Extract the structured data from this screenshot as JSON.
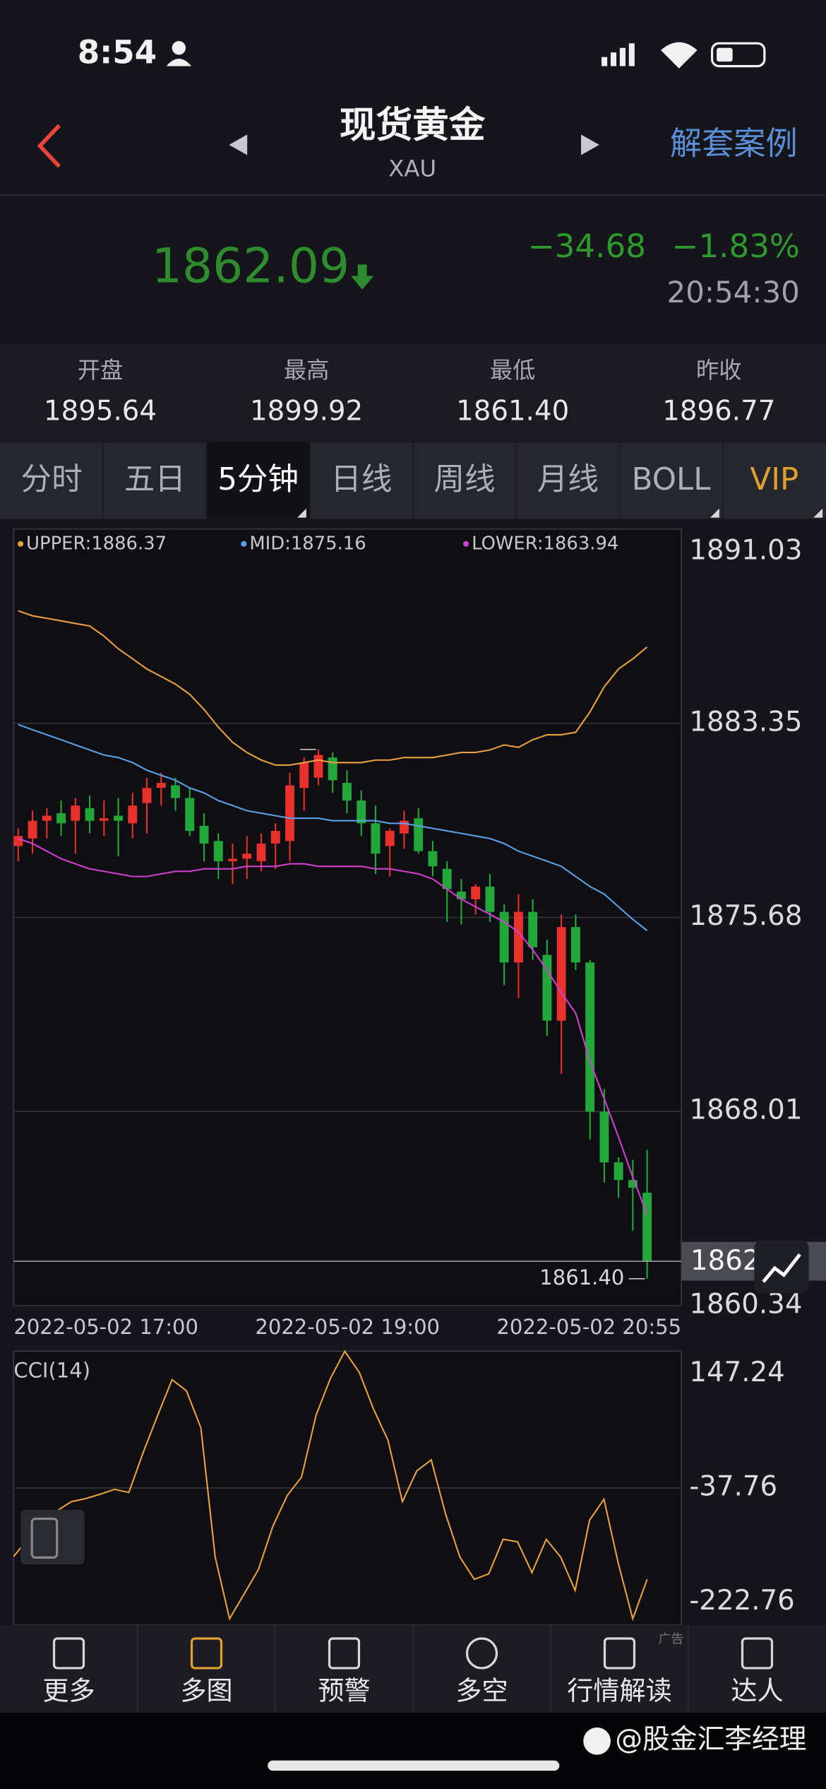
{
  "status_bar": {
    "time": "8:54"
  },
  "header": {
    "title": "现货黄金",
    "subtitle": "XAU",
    "action": "解套案例"
  },
  "quote": {
    "price": "1862.09",
    "change": "−34.68",
    "change_percent": "−1.83%",
    "time": "20:54:30"
  },
  "stats": [
    {
      "label": "开盘",
      "value": "1895.64"
    },
    {
      "label": "最高",
      "value": "1899.92"
    },
    {
      "label": "最低",
      "value": "1861.40"
    },
    {
      "label": "昨收",
      "value": "1896.77"
    }
  ],
  "tabs": [
    "分时",
    "五日",
    "5分钟",
    "日线",
    "周线",
    "月线",
    "BOLL",
    "VIP"
  ],
  "chart_data": [
    {
      "type": "candlestick",
      "up_color": "#e8302c",
      "down_color": "#22a83a",
      "candles": {
        "open": [
          1878.5,
          1878.8,
          1879.5,
          1879.8,
          1879.5,
          1880.0,
          1879.5,
          1879.7,
          1879.4,
          1880.2,
          1880.8,
          1880.9,
          1880.4,
          1879.3,
          1878.7,
          1877.9,
          1878.0,
          1877.9,
          1878.6,
          1878.7,
          1880.8,
          1881.2,
          1882.0,
          1881.0,
          1880.3,
          1879.4,
          1878.5,
          1879.0,
          1879.6,
          1878.3,
          1877.6,
          1876.7,
          1876.4,
          1876.9,
          1875.9,
          1873.9,
          1875.9,
          1874.2,
          1871.6,
          1875.3,
          1873.9,
          1868.0,
          1866.0,
          1865.3,
          1864.8
        ],
        "high": [
          1879.2,
          1879.9,
          1880.0,
          1880.3,
          1880.4,
          1880.5,
          1880.3,
          1880.4,
          1880.6,
          1881.2,
          1881.4,
          1881.2,
          1880.8,
          1879.8,
          1879.0,
          1878.6,
          1878.9,
          1879.0,
          1879.4,
          1881.4,
          1882.0,
          1882.32,
          1882.2,
          1881.5,
          1880.7,
          1880.1,
          1879.2,
          1879.9,
          1880.0,
          1878.7,
          1877.9,
          1877.2,
          1877.0,
          1877.4,
          1876.2,
          1876.6,
          1876.4,
          1874.8,
          1875.8,
          1875.8,
          1874.0,
          1868.9,
          1866.2,
          1866.1,
          1866.5
        ],
        "low": [
          1877.9,
          1878.2,
          1878.8,
          1878.9,
          1878.2,
          1879.0,
          1878.9,
          1878.1,
          1878.8,
          1879.0,
          1880.1,
          1879.9,
          1878.9,
          1877.9,
          1877.2,
          1877.0,
          1877.2,
          1877.5,
          1877.6,
          1877.9,
          1879.9,
          1880.9,
          1880.6,
          1879.8,
          1878.9,
          1877.4,
          1877.3,
          1878.4,
          1878.2,
          1877.3,
          1875.5,
          1875.4,
          1875.8,
          1875.5,
          1873.0,
          1872.5,
          1874.0,
          1871.0,
          1869.5,
          1873.6,
          1866.9,
          1865.2,
          1864.6,
          1863.3,
          1861.4
        ],
        "close": [
          1878.9,
          1879.5,
          1879.7,
          1879.4,
          1880.1,
          1879.5,
          1879.6,
          1879.5,
          1880.1,
          1880.8,
          1881.0,
          1880.4,
          1879.1,
          1878.6,
          1877.9,
          1878.0,
          1878.2,
          1878.6,
          1879.1,
          1880.9,
          1881.8,
          1882.1,
          1881.1,
          1880.3,
          1879.4,
          1878.2,
          1879.1,
          1879.5,
          1878.3,
          1877.7,
          1876.8,
          1876.4,
          1876.9,
          1875.9,
          1873.9,
          1875.9,
          1874.5,
          1871.6,
          1875.3,
          1873.9,
          1868.0,
          1866.0,
          1865.3,
          1865.0,
          1862.09
        ]
      },
      "series": [
        {
          "name": "UPPER:1886.37",
          "color": "#e8a040",
          "values": [
            1887.8,
            1887.6,
            1887.5,
            1887.4,
            1887.3,
            1887.2,
            1886.8,
            1886.3,
            1885.9,
            1885.5,
            1885.2,
            1884.9,
            1884.5,
            1883.9,
            1883.2,
            1882.6,
            1882.2,
            1881.9,
            1881.7,
            1881.7,
            1881.8,
            1881.9,
            1881.8,
            1881.8,
            1881.8,
            1881.9,
            1881.9,
            1882.0,
            1882.0,
            1882.0,
            1882.1,
            1882.2,
            1882.2,
            1882.3,
            1882.5,
            1882.4,
            1882.7,
            1882.9,
            1882.9,
            1883.0,
            1883.8,
            1884.8,
            1885.5,
            1885.9,
            1886.37
          ]
        },
        {
          "name": "MID:1875.16",
          "color": "#5aa0e6",
          "values": [
            1883.3,
            1883.1,
            1882.9,
            1882.7,
            1882.5,
            1882.3,
            1882.1,
            1882.0,
            1881.8,
            1881.5,
            1881.3,
            1881.1,
            1880.8,
            1880.6,
            1880.3,
            1880.1,
            1879.9,
            1879.8,
            1879.7,
            1879.6,
            1879.6,
            1879.6,
            1879.5,
            1879.5,
            1879.5,
            1879.5,
            1879.4,
            1879.4,
            1879.3,
            1879.2,
            1879.1,
            1879.0,
            1878.9,
            1878.8,
            1878.6,
            1878.3,
            1878.1,
            1877.9,
            1877.7,
            1877.3,
            1876.9,
            1876.6,
            1876.1,
            1875.6,
            1875.16
          ]
        },
        {
          "name": "LOWER:1863.94",
          "color": "#d040d0",
          "values": [
            1878.8,
            1878.6,
            1878.3,
            1878.0,
            1877.8,
            1877.6,
            1877.5,
            1877.4,
            1877.3,
            1877.3,
            1877.4,
            1877.5,
            1877.5,
            1877.6,
            1877.6,
            1877.6,
            1877.7,
            1877.7,
            1877.7,
            1877.8,
            1877.8,
            1877.7,
            1877.7,
            1877.7,
            1877.7,
            1877.6,
            1877.6,
            1877.5,
            1877.4,
            1877.2,
            1876.8,
            1876.4,
            1876.1,
            1875.8,
            1875.5,
            1875.1,
            1874.4,
            1873.6,
            1872.7,
            1871.9,
            1870.0,
            1868.5,
            1867.0,
            1865.4,
            1863.94
          ]
        }
      ],
      "ylim": [
        1860.34,
        1891.03
      ],
      "yticks": [
        1891.03,
        1883.35,
        1875.68,
        1868.01,
        1860.34
      ],
      "grid": true,
      "annotations": [
        {
          "value": 1882.32
        },
        {
          "value": 1861.4,
          "label": "1861.40"
        }
      ],
      "last_price": 1862.09,
      "x_labels": [
        "2022-05-02 17:00",
        "2022-05-02 19:00",
        "2022-05-02 20:55"
      ]
    },
    {
      "type": "line",
      "title": "CCI(14)",
      "series": [
        {
          "color": "#e8a040",
          "values": [
            -149,
            -120,
            -95,
            -75,
            -60,
            -55,
            -48,
            -40,
            -45,
            20,
            80,
            138,
            120,
            60,
            -150,
            -250,
            -210,
            -170,
            -100,
            -50,
            -20,
            80,
            140,
            184,
            150,
            90,
            40,
            -60,
            -10,
            8,
            -80,
            -150,
            -186,
            -177,
            -121,
            -125,
            -175,
            -121,
            -150,
            -204,
            -90,
            -56,
            -160,
            -250,
            -186
          ]
        }
      ],
      "ylim": [
        -259.76,
        184.24
      ],
      "yticks": [
        147.24,
        -37.76,
        -222.76
      ],
      "grid": true
    }
  ],
  "nav": [
    "更多",
    "多图",
    "预警",
    "多空",
    "行情解读",
    "达人"
  ],
  "ad_label": "广告",
  "watermark": "@股金汇李经理"
}
